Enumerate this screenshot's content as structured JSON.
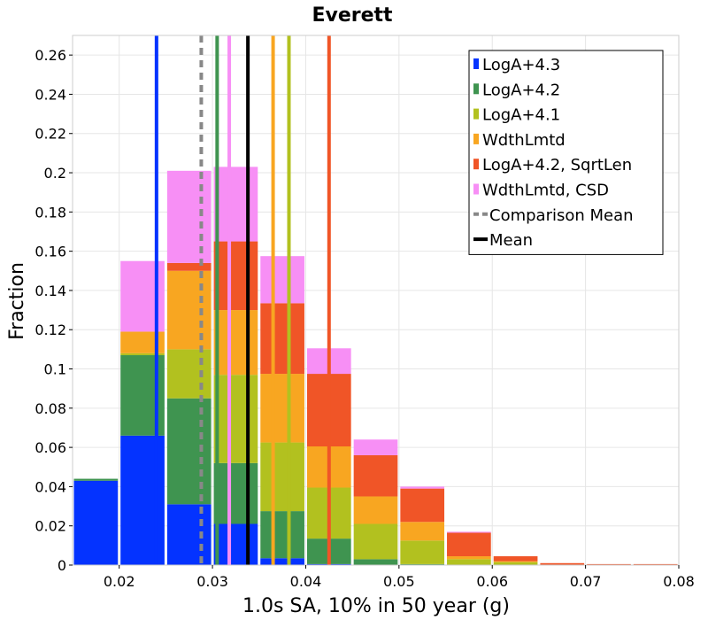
{
  "chart_data": {
    "type": "bar",
    "stacked": true,
    "title": "Everett",
    "xlabel": "1.0s SA, 10% in 50 year (g)",
    "ylabel": "Fraction",
    "xlim": [
      0.015,
      0.08
    ],
    "ylim": [
      0,
      0.27
    ],
    "bin_width": 0.005,
    "x_ticks": [
      "0.02",
      "0.03",
      "0.04",
      "0.05",
      "0.06",
      "0.07",
      "0.08"
    ],
    "x_tick_values": [
      0.02,
      0.03,
      0.04,
      0.05,
      0.06,
      0.07,
      0.08
    ],
    "y_ticks": [
      "0",
      "0.02",
      "0.04",
      "0.06",
      "0.08",
      "0.1",
      "0.12",
      "0.14",
      "0.16",
      "0.18",
      "0.2",
      "0.22",
      "0.24",
      "0.26"
    ],
    "y_tick_values": [
      0,
      0.02,
      0.04,
      0.06,
      0.08,
      0.1,
      0.12,
      0.14,
      0.16,
      0.18,
      0.2,
      0.22,
      0.24,
      0.26
    ],
    "bin_centers": [
      0.0175,
      0.0225,
      0.0275,
      0.0325,
      0.0375,
      0.0425,
      0.0475,
      0.0525,
      0.0575,
      0.0625,
      0.0675,
      0.0725,
      0.0775
    ],
    "series": [
      {
        "name": "LogA+4.3",
        "color": "#0433ff",
        "values": [
          0.043,
          0.066,
          0.031,
          0.021,
          0.0035,
          0.0005,
          0,
          0,
          0,
          0,
          0,
          0,
          0
        ]
      },
      {
        "name": "LogA+4.2",
        "color": "#3f9450",
        "values": [
          0.001,
          0.041,
          0.054,
          0.031,
          0.024,
          0.013,
          0.003,
          0.0005,
          0,
          0,
          0,
          0,
          0
        ]
      },
      {
        "name": "LogA+4.1",
        "color": "#b2c11f",
        "values": [
          0,
          0.001,
          0.025,
          0.045,
          0.035,
          0.026,
          0.018,
          0.012,
          0.003,
          0.0015,
          0,
          0,
          0
        ]
      },
      {
        "name": "WdthLmtd",
        "color": "#f8a621",
        "values": [
          0,
          0.011,
          0.04,
          0.033,
          0.035,
          0.021,
          0.014,
          0.0095,
          0.0015,
          0.0005,
          0,
          0,
          0
        ]
      },
      {
        "name": "LogA+4.2, SqrtLen",
        "color": "#f05527",
        "values": [
          0,
          0,
          0.004,
          0.035,
          0.036,
          0.037,
          0.021,
          0.017,
          0.012,
          0.0025,
          0.001,
          0.0005,
          0.0005
        ]
      },
      {
        "name": "WdthLmtd, CSD",
        "color": "#f78ff5",
        "values": [
          0,
          0.036,
          0.047,
          0.038,
          0.024,
          0.013,
          0.008,
          0.001,
          0.0005,
          0,
          0,
          0,
          0
        ]
      }
    ],
    "mean_lines": [
      {
        "name": "LogA+4.3",
        "x": 0.024,
        "color": "#0433ff"
      },
      {
        "name": "LogA+4.2",
        "x": 0.0305,
        "color": "#3f9450"
      },
      {
        "name": "WdthLmtd, CSD",
        "x": 0.0318,
        "color": "#f78ff5"
      },
      {
        "name": "Mean",
        "x": 0.0338,
        "color": "#000000"
      },
      {
        "name": "WdthLmtd",
        "x": 0.0365,
        "color": "#f8a621"
      },
      {
        "name": "LogA+4.1",
        "x": 0.0382,
        "color": "#b2c11f"
      },
      {
        "name": "LogA+4.2, SqrtLen",
        "x": 0.0425,
        "color": "#f05527"
      },
      {
        "name": "Comparison Mean",
        "x": 0.0288,
        "color": "#888888",
        "dashed": true
      }
    ],
    "legend": {
      "position": "top-right",
      "entries": [
        {
          "label": "LogA+4.3",
          "color": "#0433ff",
          "kind": "box"
        },
        {
          "label": "LogA+4.2",
          "color": "#3f9450",
          "kind": "box"
        },
        {
          "label": "LogA+4.1",
          "color": "#b2c11f",
          "kind": "box"
        },
        {
          "label": "WdthLmtd",
          "color": "#f8a621",
          "kind": "box"
        },
        {
          "label": "LogA+4.2, SqrtLen",
          "color": "#f05527",
          "kind": "box"
        },
        {
          "label": "WdthLmtd, CSD",
          "color": "#f78ff5",
          "kind": "box"
        },
        {
          "label": "Comparison Mean",
          "color": "#888888",
          "kind": "dashed"
        },
        {
          "label": "Mean",
          "color": "#000000",
          "kind": "line"
        }
      ]
    },
    "grid": true
  }
}
